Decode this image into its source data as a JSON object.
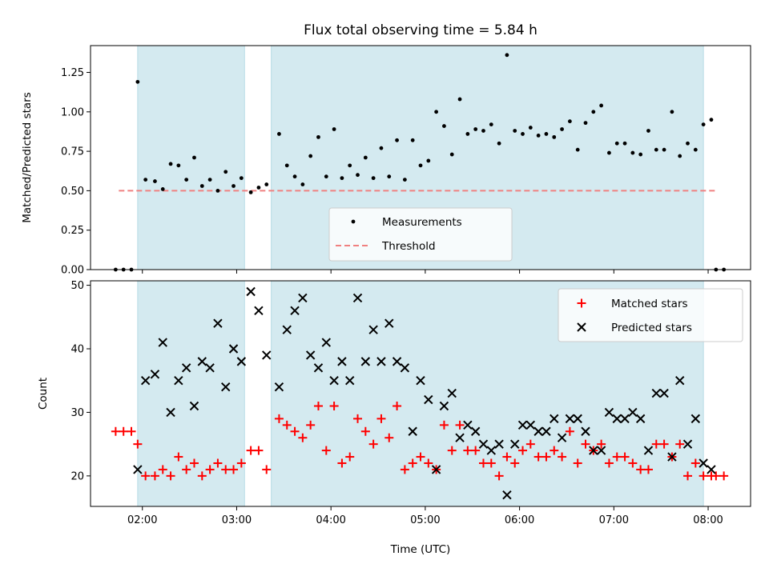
{
  "chart_data": [
    {
      "type": "scatter",
      "title": "Flux total observing time = 5.84 h",
      "xlabel": "",
      "ylabel": "Matched/Predicted stars",
      "xlim": [
        "01:27",
        "08:27"
      ],
      "ylim": [
        0,
        1.42
      ],
      "yticks": [
        0.0,
        0.25,
        0.5,
        0.75,
        1.0,
        1.25
      ],
      "ytick_labels": [
        "0.00",
        "0.25",
        "0.50",
        "0.75",
        "1.00",
        "1.25"
      ],
      "grid": false,
      "legend_position": "lower-center",
      "shaded_intervals": [
        [
          "01:57",
          "03:05"
        ],
        [
          "03:22",
          "07:57"
        ]
      ],
      "threshold": {
        "name": "Threshold",
        "value": 0.5,
        "x_range": [
          "01:45",
          "08:05"
        ],
        "color": "#f08080"
      },
      "series": [
        {
          "name": "Measurements",
          "color": "#000000",
          "x": [
            "01:43",
            "01:48",
            "01:53",
            "01:57",
            "02:02",
            "02:08",
            "02:13",
            "02:18",
            "02:23",
            "02:28",
            "02:33",
            "02:38",
            "02:43",
            "02:48",
            "02:53",
            "02:58",
            "03:03",
            "03:09",
            "03:14",
            "03:19",
            "03:27",
            "03:32",
            "03:37",
            "03:42",
            "03:47",
            "03:52",
            "03:57",
            "04:02",
            "04:07",
            "04:12",
            "04:17",
            "04:22",
            "04:27",
            "04:32",
            "04:37",
            "04:42",
            "04:47",
            "04:52",
            "04:57",
            "05:02",
            "05:07",
            "05:12",
            "05:17",
            "05:22",
            "05:27",
            "05:32",
            "05:37",
            "05:42",
            "05:47",
            "05:52",
            "05:57",
            "06:02",
            "06:07",
            "06:12",
            "06:17",
            "06:22",
            "06:27",
            "06:32",
            "06:37",
            "06:42",
            "06:47",
            "06:52",
            "06:57",
            "07:02",
            "07:07",
            "07:12",
            "07:17",
            "07:22",
            "07:27",
            "07:32",
            "07:37",
            "07:42",
            "07:47",
            "07:52",
            "07:57",
            "08:02",
            "08:05",
            "08:10"
          ],
          "y": [
            0,
            0,
            0,
            1.19,
            0.57,
            0.56,
            0.51,
            0.67,
            0.66,
            0.57,
            0.71,
            0.53,
            0.57,
            0.5,
            0.62,
            0.53,
            0.58,
            0.49,
            0.52,
            0.54,
            0.86,
            0.66,
            0.59,
            0.54,
            0.72,
            0.84,
            0.59,
            0.89,
            0.58,
            0.66,
            0.6,
            0.71,
            0.58,
            0.77,
            0.59,
            0.82,
            0.57,
            0.82,
            0.66,
            0.69,
            1.0,
            0.91,
            0.73,
            1.08,
            0.86,
            0.89,
            0.88,
            0.92,
            0.8,
            1.36,
            0.88,
            0.86,
            0.9,
            0.85,
            0.86,
            0.84,
            0.89,
            0.94,
            0.76,
            0.93,
            1.0,
            1.04,
            0.74,
            0.8,
            0.8,
            0.74,
            0.73,
            0.88,
            0.76,
            0.76,
            1.0,
            0.72,
            0.8,
            0.76,
            0.92,
            0.95,
            0,
            0
          ]
        }
      ]
    },
    {
      "type": "scatter",
      "title": "",
      "xlabel": "Time (UTC)",
      "ylabel": "Count",
      "xlim": [
        "01:27",
        "08:27"
      ],
      "ylim": [
        15.2,
        50.7
      ],
      "yticks": [
        20,
        30,
        40,
        50
      ],
      "ytick_labels": [
        "20",
        "30",
        "40",
        "50"
      ],
      "xticks": [
        "02:00",
        "03:00",
        "04:00",
        "05:00",
        "06:00",
        "07:00",
        "08:00"
      ],
      "xtick_labels": [
        "02:00",
        "03:00",
        "04:00",
        "05:00",
        "06:00",
        "07:00",
        "08:00"
      ],
      "grid": false,
      "legend_position": "top-right",
      "shaded_intervals": [
        [
          "01:57",
          "03:05"
        ],
        [
          "03:22",
          "07:57"
        ]
      ],
      "series": [
        {
          "name": "Matched stars",
          "marker": "+",
          "color": "#ff0000",
          "x": [
            "01:43",
            "01:48",
            "01:53",
            "01:57",
            "02:02",
            "02:08",
            "02:13",
            "02:18",
            "02:23",
            "02:28",
            "02:33",
            "02:38",
            "02:43",
            "02:48",
            "02:53",
            "02:58",
            "03:03",
            "03:09",
            "03:14",
            "03:19",
            "03:27",
            "03:32",
            "03:37",
            "03:42",
            "03:47",
            "03:52",
            "03:57",
            "04:02",
            "04:07",
            "04:12",
            "04:17",
            "04:22",
            "04:27",
            "04:32",
            "04:37",
            "04:42",
            "04:47",
            "04:52",
            "04:57",
            "05:02",
            "05:07",
            "05:12",
            "05:17",
            "05:22",
            "05:27",
            "05:32",
            "05:37",
            "05:42",
            "05:47",
            "05:52",
            "05:57",
            "06:02",
            "06:07",
            "06:12",
            "06:17",
            "06:22",
            "06:27",
            "06:32",
            "06:37",
            "06:42",
            "06:47",
            "06:52",
            "06:57",
            "07:02",
            "07:07",
            "07:12",
            "07:17",
            "07:22",
            "07:27",
            "07:32",
            "07:37",
            "07:42",
            "07:47",
            "07:52",
            "07:57",
            "08:02",
            "08:05",
            "08:10"
          ],
          "y": [
            27,
            27,
            27,
            25,
            20,
            20,
            21,
            20,
            23,
            21,
            22,
            20,
            21,
            22,
            21,
            21,
            22,
            24,
            24,
            21,
            29,
            28,
            27,
            26,
            28,
            31,
            24,
            31,
            22,
            23,
            29,
            27,
            25,
            29,
            26,
            31,
            21,
            22,
            23,
            22,
            21,
            28,
            24,
            28,
            24,
            24,
            22,
            22,
            20,
            23,
            22,
            24,
            25,
            23,
            23,
            24,
            23,
            27,
            22,
            25,
            24,
            25,
            22,
            23,
            23,
            22,
            21,
            21,
            25,
            25,
            23,
            25,
            20,
            22,
            20,
            20,
            20,
            20
          ]
        },
        {
          "name": "Predicted stars",
          "marker": "x",
          "color": "#000000",
          "x": [
            "01:57",
            "02:02",
            "02:08",
            "02:13",
            "02:18",
            "02:23",
            "02:28",
            "02:33",
            "02:38",
            "02:43",
            "02:48",
            "02:53",
            "02:58",
            "03:03",
            "03:09",
            "03:14",
            "03:19",
            "03:27",
            "03:32",
            "03:37",
            "03:42",
            "03:47",
            "03:52",
            "03:57",
            "04:02",
            "04:07",
            "04:12",
            "04:17",
            "04:22",
            "04:27",
            "04:32",
            "04:37",
            "04:42",
            "04:47",
            "04:52",
            "04:57",
            "05:02",
            "05:07",
            "05:12",
            "05:17",
            "05:22",
            "05:27",
            "05:32",
            "05:37",
            "05:42",
            "05:47",
            "05:52",
            "05:57",
            "06:02",
            "06:07",
            "06:12",
            "06:17",
            "06:22",
            "06:27",
            "06:32",
            "06:37",
            "06:42",
            "06:47",
            "06:52",
            "06:57",
            "07:02",
            "07:07",
            "07:12",
            "07:17",
            "07:22",
            "07:27",
            "07:32",
            "07:37",
            "07:42",
            "07:47",
            "07:52",
            "07:57",
            "08:02"
          ],
          "y": [
            21,
            35,
            36,
            41,
            30,
            35,
            37,
            31,
            38,
            37,
            44,
            34,
            40,
            38,
            49,
            46,
            39,
            34,
            43,
            46,
            48,
            39,
            37,
            41,
            35,
            38,
            35,
            48,
            38,
            43,
            38,
            44,
            38,
            37,
            27,
            35,
            32,
            21,
            31,
            33,
            26,
            28,
            27,
            25,
            24,
            25,
            17,
            25,
            28,
            28,
            27,
            27,
            29,
            26,
            29,
            29,
            27,
            24,
            24,
            30,
            29,
            29,
            30,
            29,
            24,
            33,
            33,
            23,
            35,
            25,
            29,
            22,
            21
          ]
        }
      ]
    }
  ]
}
